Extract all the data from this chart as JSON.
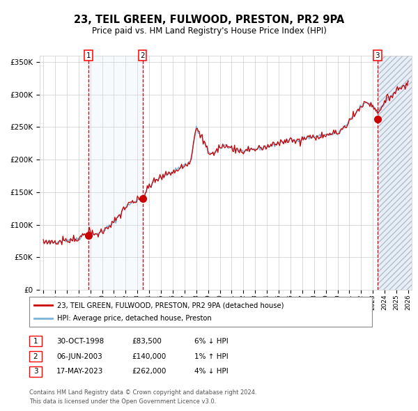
{
  "title": "23, TEIL GREEN, FULWOOD, PRESTON, PR2 9PA",
  "subtitle": "Price paid vs. HM Land Registry's House Price Index (HPI)",
  "ylim": [
    0,
    360000
  ],
  "yticks": [
    0,
    50000,
    100000,
    150000,
    200000,
    250000,
    300000,
    350000
  ],
  "ytick_labels": [
    "£0",
    "£50K",
    "£100K",
    "£150K",
    "£200K",
    "£250K",
    "£300K",
    "£350K"
  ],
  "x_start_year": 1995,
  "x_end_year": 2026,
  "hpi_color": "#7ab4d8",
  "price_color": "#cc0000",
  "sale_marker_color": "#cc0000",
  "vline_color": "#cc0000",
  "shade_color": "#dce9f5",
  "sale1_year": 1998.83,
  "sale1_price": 83500,
  "sale2_year": 2003.43,
  "sale2_price": 140000,
  "sale3_year": 2023.38,
  "sale3_price": 262000,
  "sale1_date": "30-OCT-1998",
  "sale2_date": "06-JUN-2003",
  "sale3_date": "17-MAY-2023",
  "sale1_price_str": "£83,500",
  "sale2_price_str": "£140,000",
  "sale3_price_str": "£262,000",
  "sale1_hpi_str": "6% ↓ HPI",
  "sale2_hpi_str": "1% ↑ HPI",
  "sale3_hpi_str": "4% ↓ HPI",
  "legend_line1": "23, TEIL GREEN, FULWOOD, PRESTON, PR2 9PA (detached house)",
  "legend_line2": "HPI: Average price, detached house, Preston",
  "footer": "Contains HM Land Registry data © Crown copyright and database right 2024.\nThis data is licensed under the Open Government Licence v3.0.",
  "bg_color": "#ffffff",
  "grid_color": "#cccccc"
}
